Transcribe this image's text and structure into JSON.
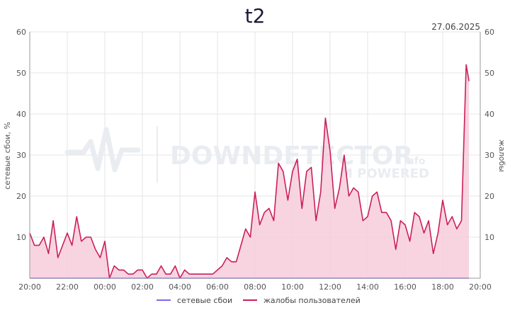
{
  "chart_data": {
    "type": "area",
    "title": "t2",
    "date": "27.06.2025",
    "ylabel_left": "сетевые сбои, %",
    "ylabel_right": "жалобы",
    "ylim": [
      0,
      60
    ],
    "y_ticks_left": [
      "60",
      "50",
      "40",
      "30",
      "20",
      "10"
    ],
    "y_ticks_right": [
      "60",
      "50",
      "40",
      "30",
      "20",
      "10"
    ],
    "xlim": [
      0,
      24
    ],
    "x_ticks": [
      "20:00",
      "22:00",
      "00:00",
      "02:00",
      "04:00",
      "06:00",
      "08:00",
      "10:00",
      "12:00",
      "14:00",
      "16:00",
      "18:00",
      "20:00"
    ],
    "grid": true,
    "legend_position": "bottom",
    "watermark": [
      "DOWNDETECTOR",
      "info",
      "M POWERED"
    ],
    "colors": {
      "complaints": "#cc1f5a",
      "complaints_fill": "#f7ccdc",
      "outages": "#7b68ee"
    },
    "series": [
      {
        "name": "сетевые сбои",
        "type": "line",
        "x": [
          0,
          23.4
        ],
        "values": [
          0,
          0
        ]
      },
      {
        "name": "жалобы пользователей",
        "type": "area",
        "x": [
          0,
          0.25,
          0.5,
          0.75,
          1.0,
          1.25,
          1.5,
          1.75,
          2.0,
          2.25,
          2.5,
          2.75,
          3.0,
          3.25,
          3.5,
          3.75,
          4.0,
          4.25,
          4.5,
          4.75,
          5.0,
          5.25,
          5.5,
          5.75,
          6.0,
          6.25,
          6.5,
          6.75,
          7.0,
          7.25,
          7.5,
          7.75,
          8.0,
          8.25,
          8.5,
          8.75,
          9.0,
          9.25,
          9.5,
          9.75,
          10.0,
          10.25,
          10.5,
          10.75,
          11.0,
          11.25,
          11.5,
          11.75,
          12.0,
          12.25,
          12.5,
          12.75,
          13.0,
          13.25,
          13.5,
          13.75,
          14.0,
          14.25,
          14.5,
          14.75,
          15.0,
          15.25,
          15.5,
          15.75,
          16.0,
          16.25,
          16.5,
          16.75,
          17.0,
          17.25,
          17.5,
          17.75,
          18.0,
          18.25,
          18.5,
          18.75,
          19.0,
          19.25,
          19.5,
          19.75,
          20.0,
          20.25,
          20.5,
          20.75,
          21.0,
          21.25,
          21.5,
          21.75,
          22.0,
          22.25,
          22.5,
          22.75,
          23.0,
          23.25,
          23.4
        ],
        "values": [
          11,
          8,
          8,
          10,
          6,
          14,
          5,
          8,
          11,
          8,
          15,
          9,
          10,
          10,
          7,
          5,
          9,
          0,
          3,
          2,
          2,
          1,
          1,
          2,
          2,
          0,
          1,
          1,
          3,
          1,
          1,
          3,
          0,
          2,
          1,
          1,
          1,
          1,
          1,
          1,
          2,
          3,
          5,
          4,
          4,
          8,
          12,
          10,
          21,
          13,
          16,
          17,
          14,
          28,
          26,
          19,
          26,
          29,
          17,
          26,
          27,
          14,
          21,
          39,
          31,
          17,
          22,
          30,
          20,
          22,
          21,
          14,
          15,
          20,
          21,
          16,
          16,
          14,
          7,
          14,
          13,
          9,
          16,
          15,
          11,
          14,
          6,
          11,
          19,
          13,
          15,
          12,
          14,
          52,
          48
        ]
      }
    ]
  }
}
